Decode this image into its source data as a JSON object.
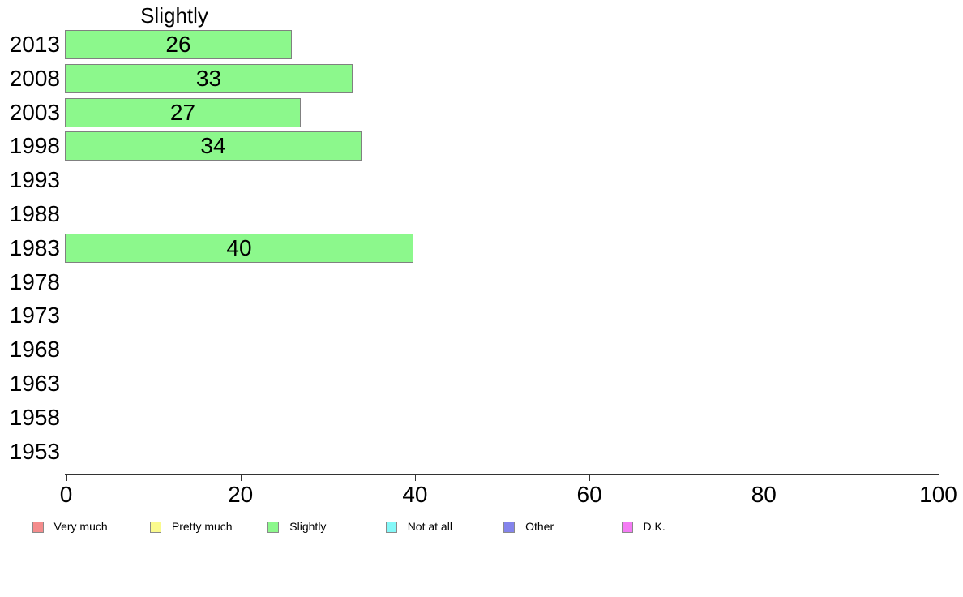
{
  "chart_data": {
    "type": "bar",
    "orientation": "horizontal",
    "title": "Slightly",
    "categories": [
      "2013",
      "2008",
      "2003",
      "1998",
      "1993",
      "1988",
      "1983",
      "1978",
      "1973",
      "1968",
      "1963",
      "1958",
      "1953"
    ],
    "values": [
      26,
      33,
      27,
      34,
      null,
      null,
      40,
      null,
      null,
      null,
      null,
      null,
      null
    ],
    "xlabel": "",
    "ylabel": "",
    "xlim": [
      0,
      100
    ],
    "xticks": [
      0,
      20,
      40,
      60,
      80,
      100
    ],
    "grid": false,
    "bar_color": "#8CF88C",
    "bar_border_color": "#808080",
    "legend_position": "bottom",
    "legend": [
      {
        "label": "Very much",
        "color": "#F48C8C"
      },
      {
        "label": "Pretty much",
        "color": "#FAFA8E"
      },
      {
        "label": "Slightly",
        "color": "#8CF88C"
      },
      {
        "label": "Not at all",
        "color": "#84F8F8"
      },
      {
        "label": "Other",
        "color": "#8484EC"
      },
      {
        "label": "D.K.",
        "color": "#F47CF4"
      }
    ]
  }
}
